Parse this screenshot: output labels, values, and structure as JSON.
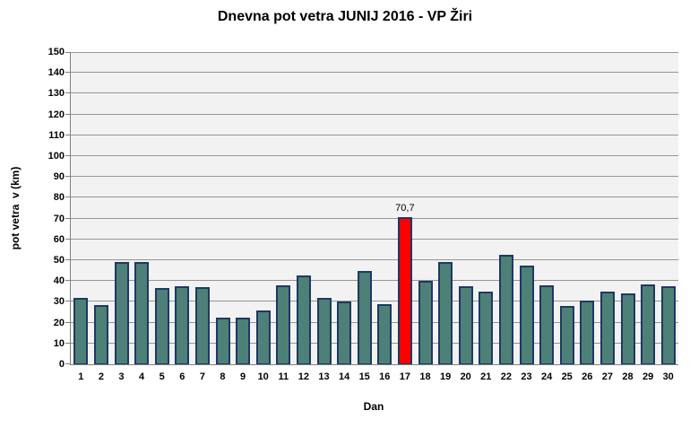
{
  "chart_data": {
    "type": "bar",
    "title": "Dnevna pot vetra JUNIJ 2016 - VP Žiri",
    "xlabel": "Dan",
    "ylabel": "pot vetra  v (km)",
    "ylim": [
      0,
      150
    ],
    "ytick_step": 10,
    "grid": true,
    "legend": "none",
    "categories": [
      "1",
      "2",
      "3",
      "4",
      "5",
      "6",
      "7",
      "8",
      "9",
      "10",
      "11",
      "12",
      "13",
      "14",
      "15",
      "16",
      "17",
      "18",
      "19",
      "20",
      "21",
      "22",
      "23",
      "24",
      "25",
      "26",
      "27",
      "28",
      "29",
      "30"
    ],
    "values": [
      32,
      28.5,
      49,
      49,
      36.5,
      37.5,
      37,
      22.5,
      22.5,
      26,
      38,
      42.5,
      32,
      30,
      45,
      29,
      70.7,
      40,
      49,
      37.5,
      35,
      52.5,
      47.5,
      38,
      28,
      30.5,
      35,
      34,
      38.5,
      37.5
    ],
    "highlight_index": 16,
    "highlight_label": "70,7",
    "colors": {
      "bar_fill": "#4D8077",
      "bar_border": "#1F3864",
      "highlight_fill": "#FF0000",
      "plot_background": "#F2F2F2",
      "gridline": "#969696",
      "axis_line": "#808080",
      "text": "#000000"
    }
  }
}
